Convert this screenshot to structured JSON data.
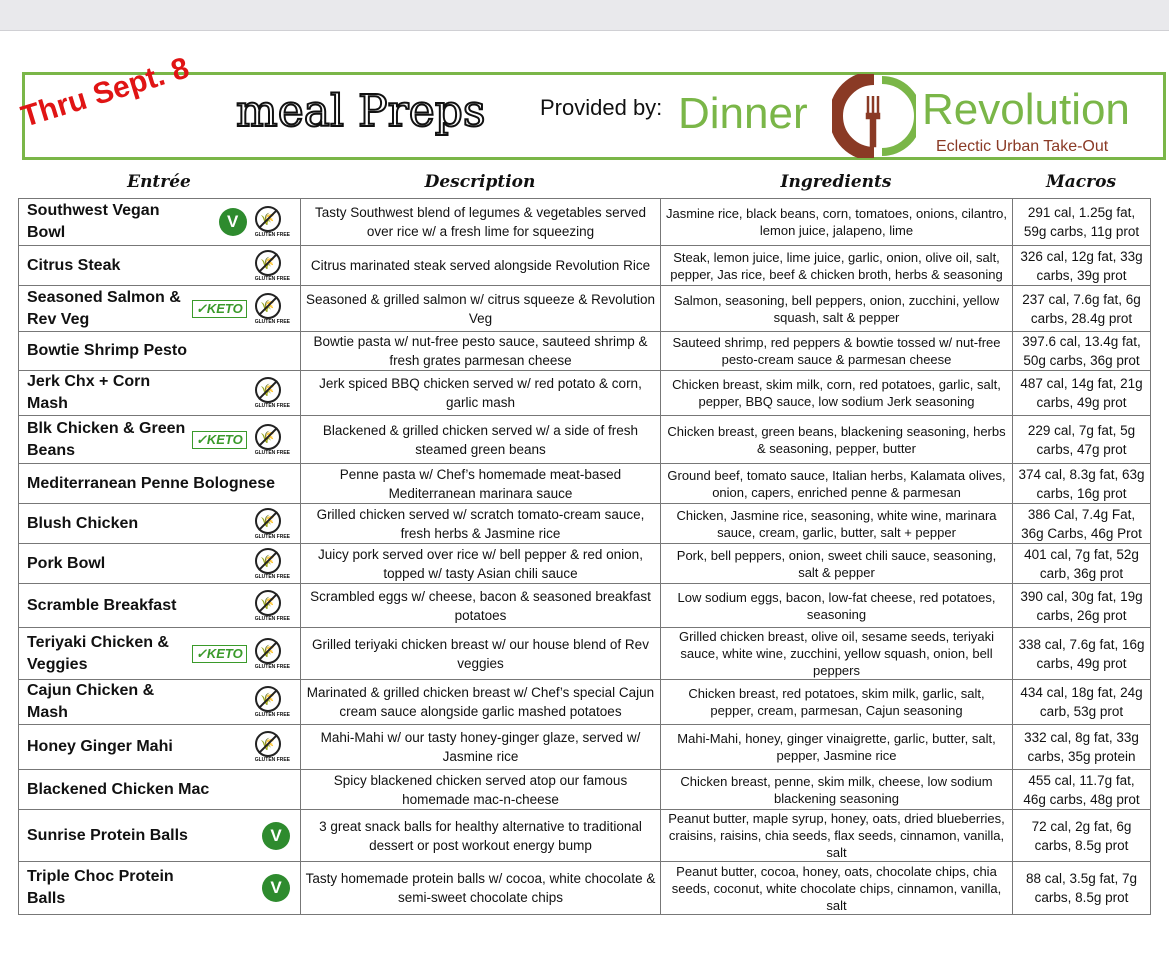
{
  "header": {
    "date_stamp": "Thru Sept. 8",
    "title": "meal Preps",
    "provided_by": "Provided by:",
    "brand_left": "Dinner",
    "brand_right": "Revolution",
    "tagline": "Eclectic Urban Take-Out"
  },
  "colors": {
    "brand_green": "#7ab648",
    "brand_brown": "#8a3a25",
    "stamp_red": "#e01414"
  },
  "columns": [
    "Entrée",
    "Description",
    "Ingredients",
    "Macros"
  ],
  "badge_labels": {
    "keto": "KETO",
    "gluten_free": "GLUTEN FREE",
    "vegetarian": "V"
  },
  "rows": [
    {
      "name": "Southwest Vegan Bowl",
      "badges": [
        "vegetarian",
        "gluten_free"
      ],
      "description": "Tasty Southwest blend of legumes & vegetables served over rice w/ a fresh lime for squeezing",
      "ingredients": "Jasmine rice, black beans, corn, tomatoes, onions, cilantro, lemon juice, jalapeno, lime",
      "macros": "291 cal, 1.25g fat, 59g carbs, 11g prot"
    },
    {
      "name": "Citrus Steak",
      "badges": [
        "gluten_free"
      ],
      "description": "Citrus marinated steak served alongside Revolution Rice",
      "ingredients": "Steak, lemon juice, lime juice, garlic, onion, olive oil, salt, pepper, Jas rice, beef & chicken broth, herbs & seasoning",
      "macros": "326 cal, 12g fat, 33g carbs, 39g prot"
    },
    {
      "name": "Seasoned Salmon & Rev Veg",
      "badges": [
        "keto",
        "gluten_free"
      ],
      "description": "Seasoned & grilled salmon w/ citrus squeeze & Revolution Veg",
      "ingredients": "Salmon, seasoning, bell peppers, onion, zucchini, yellow squash, salt & pepper",
      "macros": "237 cal, 7.6g fat, 6g carbs, 28.4g prot"
    },
    {
      "name": "Bowtie Shrimp Pesto",
      "badges": [],
      "description": "Bowtie pasta w/ nut-free pesto sauce, sauteed shrimp & fresh grates parmesan cheese",
      "ingredients": "Sauteed shrimp, red peppers & bowtie tossed w/ nut-free pesto-cream sauce & parmesan cheese",
      "macros": "397.6 cal, 13.4g fat, 50g carbs, 36g prot"
    },
    {
      "name": "Jerk Chx + Corn Mash",
      "badges": [
        "gluten_free"
      ],
      "description": "Jerk spiced BBQ chicken served w/ red potato & corn, garlic mash",
      "ingredients": "Chicken breast, skim milk, corn, red potatoes, garlic, salt, pepper, BBQ sauce, low sodium Jerk seasoning",
      "macros": "487 cal, 14g fat, 21g carbs, 49g prot"
    },
    {
      "name": "Blk Chicken & Green Beans",
      "badges": [
        "keto",
        "gluten_free"
      ],
      "description": "Blackened & grilled chicken served w/ a side of fresh steamed green beans",
      "ingredients": "Chicken breast, green beans, blackening seasoning, herbs & seasoning, pepper, butter",
      "macros": "229 cal, 7g fat, 5g carbs, 47g prot"
    },
    {
      "name": "Mediterranean Penne Bolognese",
      "badges": [],
      "description": "Penne pasta w/ Chef’s homemade meat-based Mediterranean marinara sauce",
      "ingredients": "Ground beef, tomato sauce, Italian herbs, Kalamata olives, onion, capers, enriched penne & parmesan",
      "macros": "374 cal, 8.3g fat, 63g carbs, 16g prot"
    },
    {
      "name": "Blush Chicken",
      "badges": [
        "gluten_free"
      ],
      "description": "Grilled chicken served w/ scratch tomato-cream sauce, fresh herbs & Jasmine rice",
      "ingredients": "Chicken, Jasmine rice, seasoning, white wine, marinara sauce, cream, garlic, butter, salt + pepper",
      "macros": "386 Cal, 7.4g Fat, 36g Carbs, 46g Prot"
    },
    {
      "name": "Pork Bowl",
      "badges": [
        "gluten_free"
      ],
      "description": "Juicy pork served over rice w/ bell pepper & red onion, topped w/ tasty Asian chili sauce",
      "ingredients": "Pork, bell peppers, onion, sweet chili sauce, seasoning, salt & pepper",
      "macros": "401 cal, 7g fat, 52g carb, 36g prot"
    },
    {
      "name": "Scramble Breakfast",
      "badges": [
        "gluten_free"
      ],
      "description": "Scrambled eggs w/ cheese, bacon & seasoned breakfast potatoes",
      "ingredients": "Low sodium eggs, bacon, low-fat cheese, red potatoes, seasoning",
      "macros": "390 cal, 30g fat, 19g carbs, 26g prot"
    },
    {
      "name": "Teriyaki Chicken & Veggies",
      "badges": [
        "keto",
        "gluten_free"
      ],
      "description": "Grilled teriyaki chicken breast w/ our house blend of Rev veggies",
      "ingredients": "Grilled chicken breast, olive oil, sesame seeds, teriyaki sauce, white wine, zucchini, yellow squash, onion, bell peppers",
      "macros": "338 cal, 7.6g fat, 16g carbs, 49g prot"
    },
    {
      "name": "Cajun Chicken & Mash",
      "badges": [
        "gluten_free"
      ],
      "description": "Marinated & grilled chicken breast w/ Chef’s special Cajun cream sauce alongside garlic mashed potatoes",
      "ingredients": "Chicken breast, red potatoes, skim milk, garlic, salt, pepper, cream, parmesan, Cajun seasoning",
      "macros": "434 cal, 18g fat, 24g carb, 53g prot"
    },
    {
      "name": "Honey Ginger Mahi",
      "badges": [
        "gluten_free"
      ],
      "description": "Mahi-Mahi w/ our tasty honey-ginger glaze, served w/ Jasmine rice",
      "ingredients": "Mahi-Mahi, honey, ginger vinaigrette, garlic, butter, salt, pepper, Jasmine rice",
      "macros": "332 cal, 8g fat, 33g carbs, 35g protein"
    },
    {
      "name": "Blackened Chicken Mac",
      "badges": [],
      "description": "Spicy blackened chicken served atop our famous homemade mac-n-cheese",
      "ingredients": "Chicken breast, penne, skim milk, cheese, low sodium blackening seasoning",
      "macros": "455 cal, 11.7g fat, 46g carbs, 48g prot"
    },
    {
      "name": "Sunrise Protein Balls",
      "badges": [
        "vegetarian"
      ],
      "description": "3 great snack balls for healthy alternative to traditional dessert or post workout energy bump",
      "ingredients": "Peanut butter, maple syrup, honey, oats, dried blueberries, craisins, raisins, chia seeds, flax seeds, cinnamon, vanilla, salt",
      "macros": "72 cal, 2g fat, 6g carbs, 8.5g prot"
    },
    {
      "name": "Triple Choc Protein Balls",
      "badges": [
        "vegetarian"
      ],
      "description": "Tasty homemade protein balls w/ cocoa, white chocolate & semi-sweet chocolate chips",
      "ingredients": "Peanut butter, cocoa, honey, oats, chocolate chips, chia seeds, coconut, white chocolate chips, cinnamon, vanilla, salt",
      "macros": "88 cal, 3.5g fat, 7g carbs, 8.5g prot"
    }
  ]
}
